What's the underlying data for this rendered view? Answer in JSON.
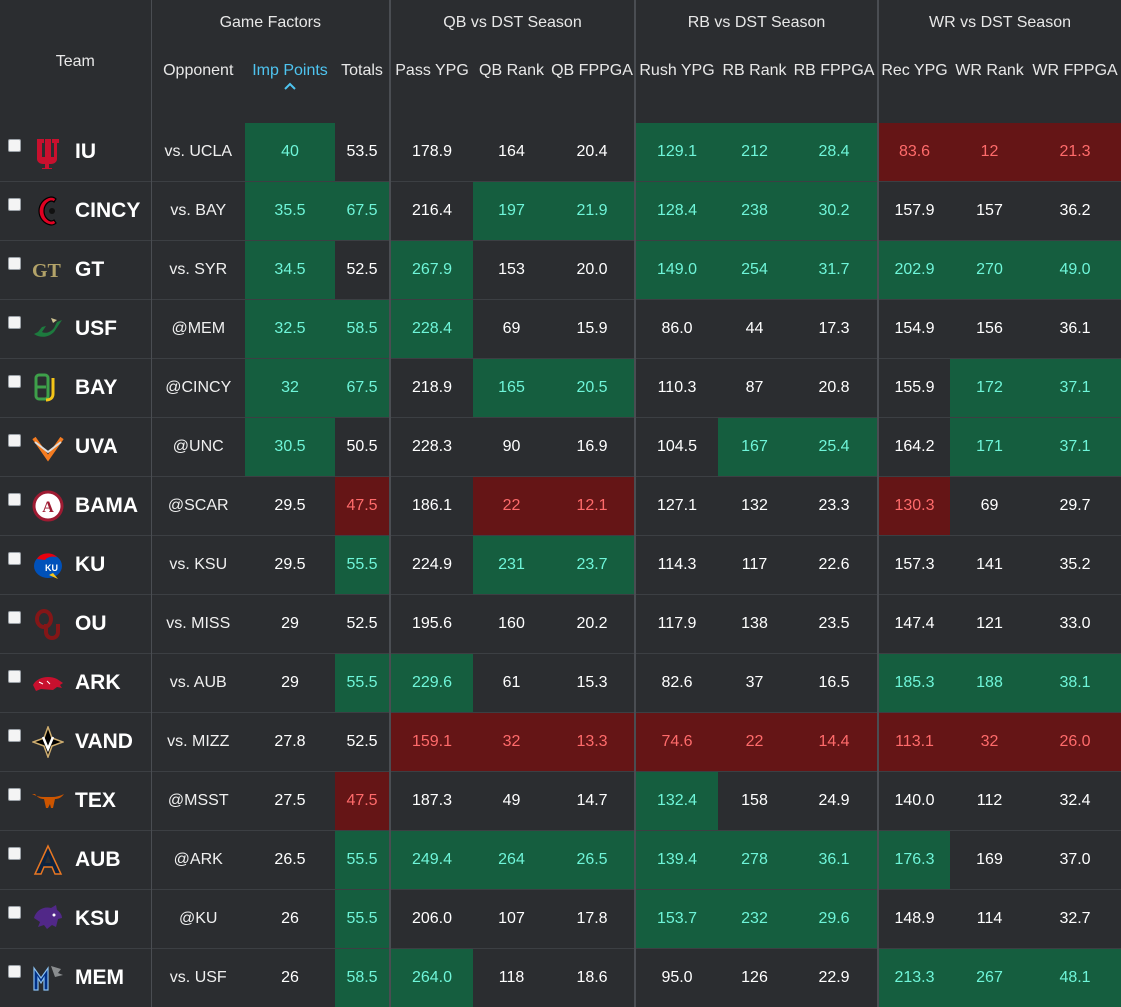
{
  "groups": {
    "team": "Team",
    "game_factors": "Game Factors",
    "qb": "QB vs DST Season",
    "rb": "RB vs DST Season",
    "wr": "WR vs DST Season"
  },
  "columns": {
    "opponent": "Opponent",
    "imp_points": "Imp Points",
    "totals": "Totals",
    "pass_ypg": "Pass YPG",
    "qb_rank": "QB Rank",
    "qb_fppga": "QB FPPGA",
    "rush_ypg": "Rush YPG",
    "rb_rank": "RB Rank",
    "rb_fppga": "RB FPPGA",
    "rec_ypg": "Rec YPG",
    "wr_rank": "WR Rank",
    "wr_fppga": "WR FPPGA"
  },
  "sort": {
    "column": "imp_points",
    "direction": "desc"
  },
  "colors": {
    "positive_bg": "#155e3f",
    "positive_text": "#6ff5d9",
    "negative_bg": "#651516",
    "negative_text": "#ff6b6b",
    "accent": "#4ec4f0"
  },
  "rows": [
    {
      "team": "IU",
      "logo": "iu-logo",
      "opponent": "vs. UCLA",
      "imp_points": "40",
      "totals": "53.5",
      "pass_ypg": "178.9",
      "qb_rank": "164",
      "qb_fppga": "20.4",
      "rush_ypg": "129.1",
      "rb_rank": "212",
      "rb_fppga": "28.4",
      "rec_ypg": "83.6",
      "wr_rank": "12",
      "wr_fppga": "21.3",
      "hl": {
        "imp_points": "pos",
        "rush_ypg": "pos",
        "rb_rank": "pos",
        "rb_fppga": "pos",
        "rec_ypg": "neg",
        "wr_rank": "neg",
        "wr_fppga": "neg"
      }
    },
    {
      "team": "CINCY",
      "logo": "cincy-logo",
      "opponent": "vs. BAY",
      "imp_points": "35.5",
      "totals": "67.5",
      "pass_ypg": "216.4",
      "qb_rank": "197",
      "qb_fppga": "21.9",
      "rush_ypg": "128.4",
      "rb_rank": "238",
      "rb_fppga": "30.2",
      "rec_ypg": "157.9",
      "wr_rank": "157",
      "wr_fppga": "36.2",
      "hl": {
        "imp_points": "pos",
        "totals": "pos",
        "qb_rank": "pos",
        "qb_fppga": "pos",
        "rush_ypg": "pos",
        "rb_rank": "pos",
        "rb_fppga": "pos"
      }
    },
    {
      "team": "GT",
      "logo": "gt-logo",
      "opponent": "vs. SYR",
      "imp_points": "34.5",
      "totals": "52.5",
      "pass_ypg": "267.9",
      "qb_rank": "153",
      "qb_fppga": "20.0",
      "rush_ypg": "149.0",
      "rb_rank": "254",
      "rb_fppga": "31.7",
      "rec_ypg": "202.9",
      "wr_rank": "270",
      "wr_fppga": "49.0",
      "hl": {
        "imp_points": "pos",
        "pass_ypg": "pos",
        "rush_ypg": "pos",
        "rb_rank": "pos",
        "rb_fppga": "pos",
        "rec_ypg": "pos",
        "wr_rank": "pos",
        "wr_fppga": "pos"
      }
    },
    {
      "team": "USF",
      "logo": "usf-logo",
      "opponent": "@MEM",
      "imp_points": "32.5",
      "totals": "58.5",
      "pass_ypg": "228.4",
      "qb_rank": "69",
      "qb_fppga": "15.9",
      "rush_ypg": "86.0",
      "rb_rank": "44",
      "rb_fppga": "17.3",
      "rec_ypg": "154.9",
      "wr_rank": "156",
      "wr_fppga": "36.1",
      "hl": {
        "imp_points": "pos",
        "totals": "pos",
        "pass_ypg": "pos"
      }
    },
    {
      "team": "BAY",
      "logo": "bay-logo",
      "opponent": "@CINCY",
      "imp_points": "32",
      "totals": "67.5",
      "pass_ypg": "218.9",
      "qb_rank": "165",
      "qb_fppga": "20.5",
      "rush_ypg": "110.3",
      "rb_rank": "87",
      "rb_fppga": "20.8",
      "rec_ypg": "155.9",
      "wr_rank": "172",
      "wr_fppga": "37.1",
      "hl": {
        "imp_points": "pos",
        "totals": "pos",
        "qb_rank": "pos",
        "qb_fppga": "pos",
        "wr_rank": "pos",
        "wr_fppga": "pos"
      }
    },
    {
      "team": "UVA",
      "logo": "uva-logo",
      "opponent": "@UNC",
      "imp_points": "30.5",
      "totals": "50.5",
      "pass_ypg": "228.3",
      "qb_rank": "90",
      "qb_fppga": "16.9",
      "rush_ypg": "104.5",
      "rb_rank": "167",
      "rb_fppga": "25.4",
      "rec_ypg": "164.2",
      "wr_rank": "171",
      "wr_fppga": "37.1",
      "hl": {
        "imp_points": "pos",
        "rb_rank": "pos",
        "rb_fppga": "pos",
        "wr_rank": "pos",
        "wr_fppga": "pos"
      }
    },
    {
      "team": "BAMA",
      "logo": "bama-logo",
      "opponent": "@SCAR",
      "imp_points": "29.5",
      "totals": "47.5",
      "pass_ypg": "186.1",
      "qb_rank": "22",
      "qb_fppga": "12.1",
      "rush_ypg": "127.1",
      "rb_rank": "132",
      "rb_fppga": "23.3",
      "rec_ypg": "130.3",
      "wr_rank": "69",
      "wr_fppga": "29.7",
      "hl": {
        "totals": "neg",
        "qb_rank": "neg",
        "qb_fppga": "neg",
        "rec_ypg": "neg"
      }
    },
    {
      "team": "KU",
      "logo": "ku-logo",
      "opponent": "vs. KSU",
      "imp_points": "29.5",
      "totals": "55.5",
      "pass_ypg": "224.9",
      "qb_rank": "231",
      "qb_fppga": "23.7",
      "rush_ypg": "114.3",
      "rb_rank": "117",
      "rb_fppga": "22.6",
      "rec_ypg": "157.3",
      "wr_rank": "141",
      "wr_fppga": "35.2",
      "hl": {
        "totals": "pos",
        "qb_rank": "pos",
        "qb_fppga": "pos"
      }
    },
    {
      "team": "OU",
      "logo": "ou-logo",
      "opponent": "vs. MISS",
      "imp_points": "29",
      "totals": "52.5",
      "pass_ypg": "195.6",
      "qb_rank": "160",
      "qb_fppga": "20.2",
      "rush_ypg": "117.9",
      "rb_rank": "138",
      "rb_fppga": "23.5",
      "rec_ypg": "147.4",
      "wr_rank": "121",
      "wr_fppga": "33.0",
      "hl": {}
    },
    {
      "team": "ARK",
      "logo": "ark-logo",
      "opponent": "vs. AUB",
      "imp_points": "29",
      "totals": "55.5",
      "pass_ypg": "229.6",
      "qb_rank": "61",
      "qb_fppga": "15.3",
      "rush_ypg": "82.6",
      "rb_rank": "37",
      "rb_fppga": "16.5",
      "rec_ypg": "185.3",
      "wr_rank": "188",
      "wr_fppga": "38.1",
      "hl": {
        "totals": "pos",
        "pass_ypg": "pos",
        "rec_ypg": "pos",
        "wr_rank": "pos",
        "wr_fppga": "pos"
      }
    },
    {
      "team": "VAND",
      "logo": "vand-logo",
      "opponent": "vs. MIZZ",
      "imp_points": "27.8",
      "totals": "52.5",
      "pass_ypg": "159.1",
      "qb_rank": "32",
      "qb_fppga": "13.3",
      "rush_ypg": "74.6",
      "rb_rank": "22",
      "rb_fppga": "14.4",
      "rec_ypg": "113.1",
      "wr_rank": "32",
      "wr_fppga": "26.0",
      "hl": {
        "pass_ypg": "neg",
        "qb_rank": "neg",
        "qb_fppga": "neg",
        "rush_ypg": "neg",
        "rb_rank": "neg",
        "rb_fppga": "neg",
        "rec_ypg": "neg",
        "wr_rank": "neg",
        "wr_fppga": "neg"
      }
    },
    {
      "team": "TEX",
      "logo": "tex-logo",
      "opponent": "@MSST",
      "imp_points": "27.5",
      "totals": "47.5",
      "pass_ypg": "187.3",
      "qb_rank": "49",
      "qb_fppga": "14.7",
      "rush_ypg": "132.4",
      "rb_rank": "158",
      "rb_fppga": "24.9",
      "rec_ypg": "140.0",
      "wr_rank": "112",
      "wr_fppga": "32.4",
      "hl": {
        "totals": "neg",
        "rush_ypg": "pos"
      }
    },
    {
      "team": "AUB",
      "logo": "aub-logo",
      "opponent": "@ARK",
      "imp_points": "26.5",
      "totals": "55.5",
      "pass_ypg": "249.4",
      "qb_rank": "264",
      "qb_fppga": "26.5",
      "rush_ypg": "139.4",
      "rb_rank": "278",
      "rb_fppga": "36.1",
      "rec_ypg": "176.3",
      "wr_rank": "169",
      "wr_fppga": "37.0",
      "hl": {
        "totals": "pos",
        "pass_ypg": "pos",
        "qb_rank": "pos",
        "qb_fppga": "pos",
        "rush_ypg": "pos",
        "rb_rank": "pos",
        "rb_fppga": "pos",
        "rec_ypg": "pos"
      }
    },
    {
      "team": "KSU",
      "logo": "ksu-logo",
      "opponent": "@KU",
      "imp_points": "26",
      "totals": "55.5",
      "pass_ypg": "206.0",
      "qb_rank": "107",
      "qb_fppga": "17.8",
      "rush_ypg": "153.7",
      "rb_rank": "232",
      "rb_fppga": "29.6",
      "rec_ypg": "148.9",
      "wr_rank": "114",
      "wr_fppga": "32.7",
      "hl": {
        "totals": "pos",
        "rush_ypg": "pos",
        "rb_rank": "pos",
        "rb_fppga": "pos"
      }
    },
    {
      "team": "MEM",
      "logo": "mem-logo",
      "opponent": "vs. USF",
      "imp_points": "26",
      "totals": "58.5",
      "pass_ypg": "264.0",
      "qb_rank": "118",
      "qb_fppga": "18.6",
      "rush_ypg": "95.0",
      "rb_rank": "126",
      "rb_fppga": "22.9",
      "rec_ypg": "213.3",
      "wr_rank": "267",
      "wr_fppga": "48.1",
      "hl": {
        "totals": "pos",
        "pass_ypg": "pos",
        "rec_ypg": "pos",
        "wr_rank": "pos",
        "wr_fppga": "pos"
      }
    }
  ]
}
